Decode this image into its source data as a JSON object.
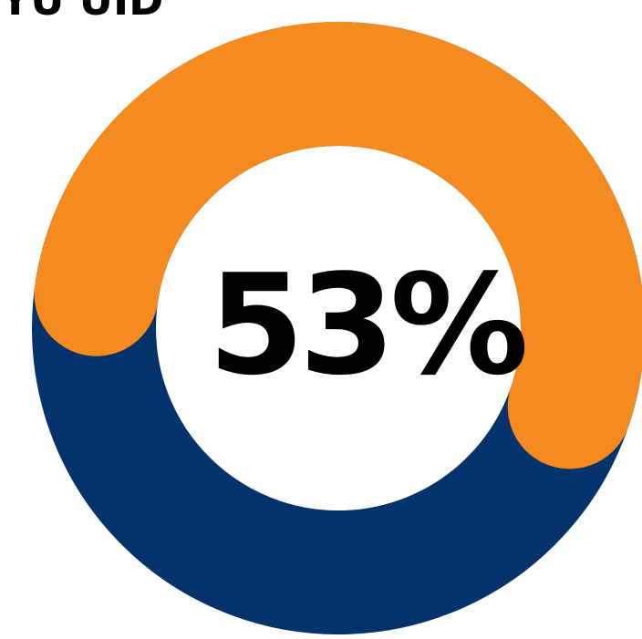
{
  "chart_data": {
    "type": "pie",
    "variant": "donut",
    "title": "",
    "center_label": "53%",
    "cropped_title_fragment": "YU UID",
    "slices": [
      {
        "label": "",
        "value": 53,
        "color": "#F58A1F"
      },
      {
        "label": "",
        "value": 47,
        "color": "#04326A"
      }
    ],
    "grid": false,
    "legend": "none"
  }
}
